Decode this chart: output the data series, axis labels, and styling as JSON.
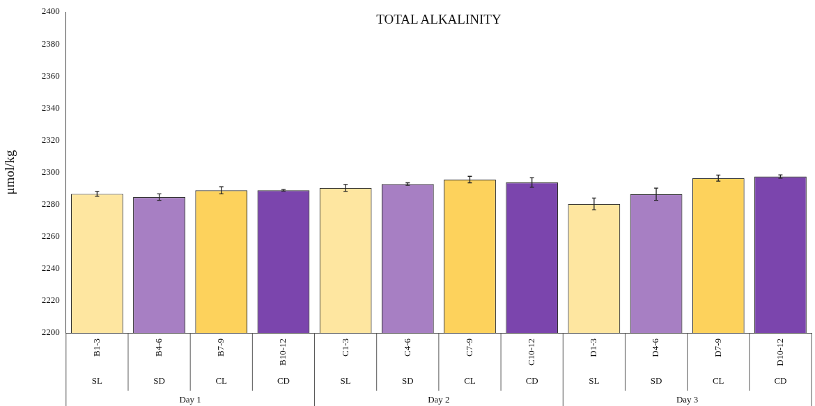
{
  "chart_data": {
    "type": "bar",
    "title": "TOTAL ALKALINITY",
    "ylabel": "μmol/kg",
    "categories": [
      "B1-3",
      "B4-6",
      "B7-9",
      "B10-12",
      "C1-3",
      "C4-6",
      "C7-9",
      "C10-12",
      "D1-3",
      "D4-6",
      "D7-9",
      "D10-12"
    ],
    "values": [
      2286.6,
      2284.6,
      2288.8,
      2288.8,
      2290.3,
      2292.7,
      2295.5,
      2293.7,
      2280.3,
      2286.4,
      2296.4,
      2297.4
    ],
    "errors": [
      1.5,
      2,
      2.2,
      0.5,
      2.2,
      0.8,
      2,
      3,
      3.7,
      3.8,
      1.9,
      1
    ],
    "colors": [
      "#fee6a0",
      "#a77fc3",
      "#fdd25c",
      "#7b45ad",
      "#fee6a0",
      "#a77fc3",
      "#fdd25c",
      "#7b45ad",
      "#fee6a0",
      "#a77fc3",
      "#fdd25c",
      "#7b45ad"
    ],
    "ylim": [
      2200,
      2400
    ],
    "yticks": [
      2200,
      2220,
      2240,
      2260,
      2280,
      2300,
      2320,
      2340,
      2360,
      2380,
      2400
    ],
    "grid": false,
    "legend": false,
    "annotations": [
      "SL",
      "SD",
      "CL",
      "CD",
      "SL",
      "SD",
      "CL",
      "CD",
      "SL",
      "SD",
      "CL",
      "CD",
      "Day 1",
      "Day 2",
      "Day 3"
    ]
  }
}
